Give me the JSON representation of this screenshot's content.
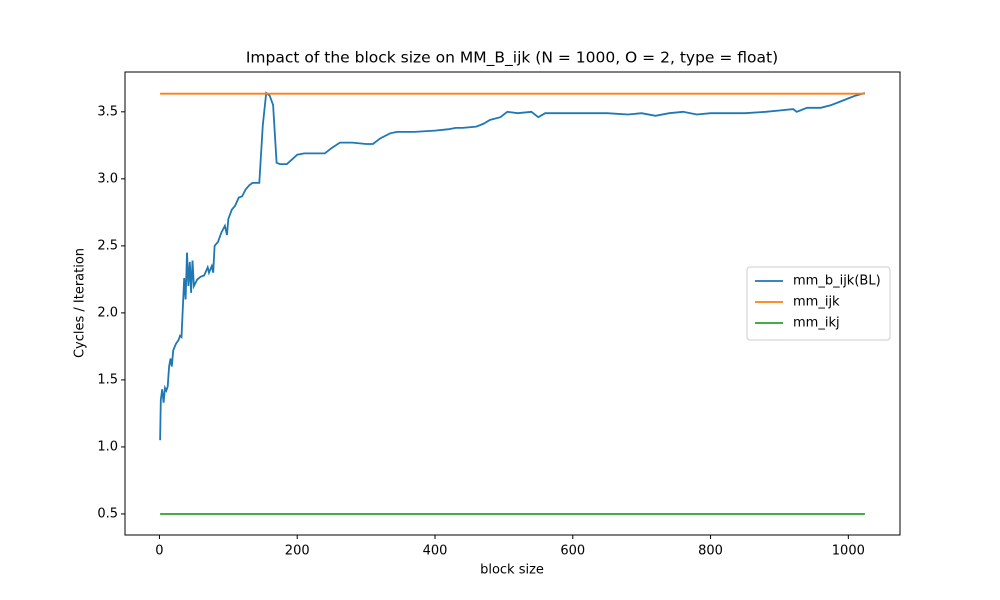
{
  "chart_data": {
    "type": "line",
    "title": "Impact of the block size on MM_B_ijk (N = 1000, O = 2, type = float)",
    "xlabel": "block size",
    "ylabel": "Cycles / Iteration",
    "xlim": [
      -50,
      1075
    ],
    "ylim": [
      0.343,
      3.797
    ],
    "xticks": [
      0,
      200,
      400,
      600,
      800,
      1000
    ],
    "yticks": [
      0.5,
      {
        "value": 1,
        "label": "1.0"
      },
      1.5,
      {
        "value": 2,
        "label": "2.0"
      },
      2.5,
      {
        "value": 3,
        "label": "3.0"
      },
      3.5
    ],
    "legend": "center right",
    "series": [
      {
        "name": "mm_b_ijk(BL)",
        "color": "#1f77b4",
        "x": [
          1,
          2,
          4,
          6,
          8,
          10,
          12,
          14,
          16,
          18,
          20,
          24,
          28,
          30,
          32,
          34,
          36,
          38,
          40,
          42,
          44,
          46,
          48,
          50,
          55,
          60,
          65,
          70,
          72,
          76,
          78,
          80,
          85,
          90,
          95,
          98,
          100,
          105,
          110,
          115,
          120,
          125,
          130,
          135,
          140,
          145,
          150,
          155,
          160,
          165,
          170,
          175,
          185,
          200,
          210,
          240,
          250,
          262,
          280,
          300,
          310,
          320,
          335,
          345,
          370,
          400,
          420,
          430,
          440,
          460,
          470,
          480,
          495,
          505,
          520,
          540,
          550,
          560,
          580,
          600,
          620,
          650,
          680,
          700,
          720,
          740,
          760,
          780,
          800,
          820,
          850,
          880,
          900,
          920,
          925,
          940,
          960,
          975,
          990,
          1000,
          1010,
          1024
        ],
        "values": [
          1.05,
          1.35,
          1.43,
          1.33,
          1.44,
          1.42,
          1.45,
          1.6,
          1.66,
          1.6,
          1.72,
          1.77,
          1.8,
          1.83,
          1.82,
          2.05,
          2.26,
          2.1,
          2.45,
          2.2,
          2.38,
          2.15,
          2.39,
          2.2,
          2.25,
          2.27,
          2.28,
          2.34,
          2.3,
          2.35,
          2.3,
          2.5,
          2.53,
          2.6,
          2.65,
          2.58,
          2.7,
          2.77,
          2.8,
          2.86,
          2.87,
          2.92,
          2.95,
          2.97,
          2.97,
          2.97,
          3.4,
          3.64,
          3.62,
          3.55,
          3.12,
          3.11,
          3.11,
          3.18,
          3.19,
          3.19,
          3.23,
          3.27,
          3.27,
          3.26,
          3.26,
          3.3,
          3.34,
          3.35,
          3.35,
          3.36,
          3.37,
          3.38,
          3.38,
          3.39,
          3.41,
          3.44,
          3.46,
          3.5,
          3.49,
          3.5,
          3.46,
          3.49,
          3.49,
          3.49,
          3.49,
          3.49,
          3.48,
          3.49,
          3.47,
          3.49,
          3.5,
          3.48,
          3.49,
          3.49,
          3.49,
          3.5,
          3.51,
          3.52,
          3.5,
          3.53,
          3.53,
          3.55,
          3.58,
          3.6,
          3.62,
          3.64
        ]
      },
      {
        "name": "mm_ijk",
        "color": "#ff7f0e",
        "x": [
          1,
          1024
        ],
        "values": [
          3.635,
          3.635
        ]
      },
      {
        "name": "mm_ikj",
        "color": "#2ca02c",
        "x": [
          1,
          1024
        ],
        "values": [
          0.5,
          0.5
        ]
      }
    ]
  }
}
